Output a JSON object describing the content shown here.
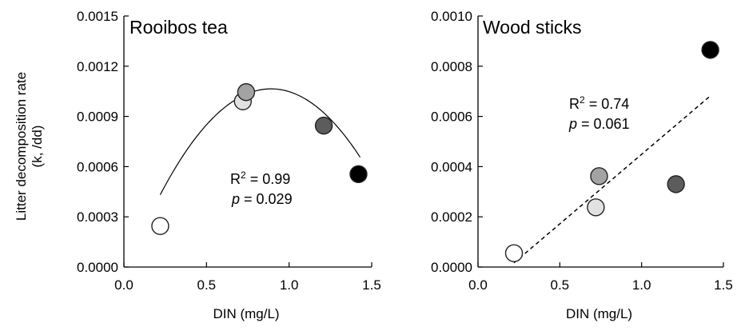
{
  "y_axis_title_line1": "Litter decomposition rate",
  "y_axis_title_line2": "(k, /dd)",
  "chart_data": [
    {
      "type": "scatter",
      "title": "Rooibos tea",
      "xlabel": "DIN  (mg/L)",
      "ylabel": "Litter decomposition rate (k, /dd)",
      "xlim": [
        0.0,
        1.5
      ],
      "ylim": [
        0.0,
        0.0015
      ],
      "x_ticks": [
        "0.0",
        "0.5",
        "1.0",
        "1.5"
      ],
      "y_ticks": [
        "0.0000",
        "0.0003",
        "0.0006",
        "0.0009",
        "0.0012",
        "0.0015"
      ],
      "points": [
        {
          "x": 0.22,
          "y": 0.000245,
          "color": "#ffffff"
        },
        {
          "x": 0.72,
          "y": 0.00099,
          "color": "#e2e2e2"
        },
        {
          "x": 0.74,
          "y": 0.001045,
          "color": "#a3a3a3"
        },
        {
          "x": 1.21,
          "y": 0.000845,
          "color": "#5c5c5c"
        },
        {
          "x": 1.42,
          "y": 0.000555,
          "color": "#000000"
        }
      ],
      "fit": {
        "kind": "quadratic",
        "a": -0.001406,
        "b": 0.002505,
        "c": -5.1e-05,
        "x_start": 0.22,
        "x_end": 1.43,
        "style": "solid"
      },
      "r2_prefix": "R",
      "r2_sup": "2",
      "r2_value": " = 0.99",
      "p_symbol": "p",
      "p_value": " = 0.029"
    },
    {
      "type": "scatter",
      "title": "Wood sticks",
      "xlabel": "DIN  (mg/L)",
      "ylabel": "",
      "xlim": [
        0.0,
        1.5
      ],
      "ylim": [
        0.0,
        0.001
      ],
      "x_ticks": [
        "0.0",
        "0.5",
        "1.0",
        "1.5"
      ],
      "y_ticks": [
        "0.0000",
        "0.0002",
        "0.0004",
        "0.0006",
        "0.0008",
        "0.0010"
      ],
      "points": [
        {
          "x": 0.22,
          "y": 5.5e-05,
          "color": "#ffffff"
        },
        {
          "x": 0.72,
          "y": 0.000238,
          "color": "#e2e2e2"
        },
        {
          "x": 0.74,
          "y": 0.000362,
          "color": "#a3a3a3"
        },
        {
          "x": 1.21,
          "y": 0.00033,
          "color": "#5c5c5c"
        },
        {
          "x": 1.42,
          "y": 0.000865,
          "color": "#000000"
        }
      ],
      "fit": {
        "kind": "linear",
        "slope": 0.000554,
        "intercept": -0.000105,
        "x_start": 0.22,
        "x_end": 1.42,
        "style": "dashed"
      },
      "r2_prefix": "R",
      "r2_sup": "2",
      "r2_value": " = 0.74",
      "p_symbol": "p",
      "p_value": " = 0.061"
    }
  ]
}
